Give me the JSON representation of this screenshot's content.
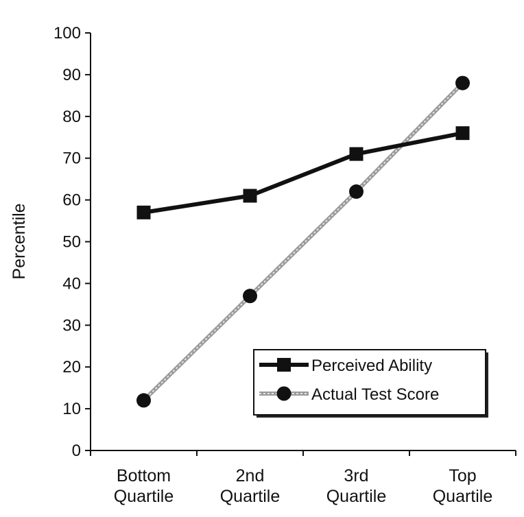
{
  "chart_data": {
    "type": "line",
    "title": "",
    "xlabel": "",
    "ylabel": "Percentile",
    "categories": [
      [
        "Bottom",
        "Quartile"
      ],
      [
        "2nd",
        "Quartile"
      ],
      [
        "3rd",
        "Quartile"
      ],
      [
        "Top",
        "Quartile"
      ]
    ],
    "ylim": [
      0,
      100
    ],
    "yticks": [
      0,
      10,
      20,
      30,
      40,
      50,
      60,
      70,
      80,
      90,
      100
    ],
    "grid": false,
    "legend_position": "bottom-right",
    "series": [
      {
        "name": "Perceived Ability",
        "values": [
          57,
          61,
          71,
          76
        ],
        "marker": "square",
        "line_style": "solid",
        "color": "#111111"
      },
      {
        "name": "Actual Test Score",
        "values": [
          12,
          37,
          62,
          88
        ],
        "marker": "circle",
        "line_style": "dotted-gray",
        "color": "#9a9a9a",
        "marker_color": "#111111"
      }
    ]
  }
}
